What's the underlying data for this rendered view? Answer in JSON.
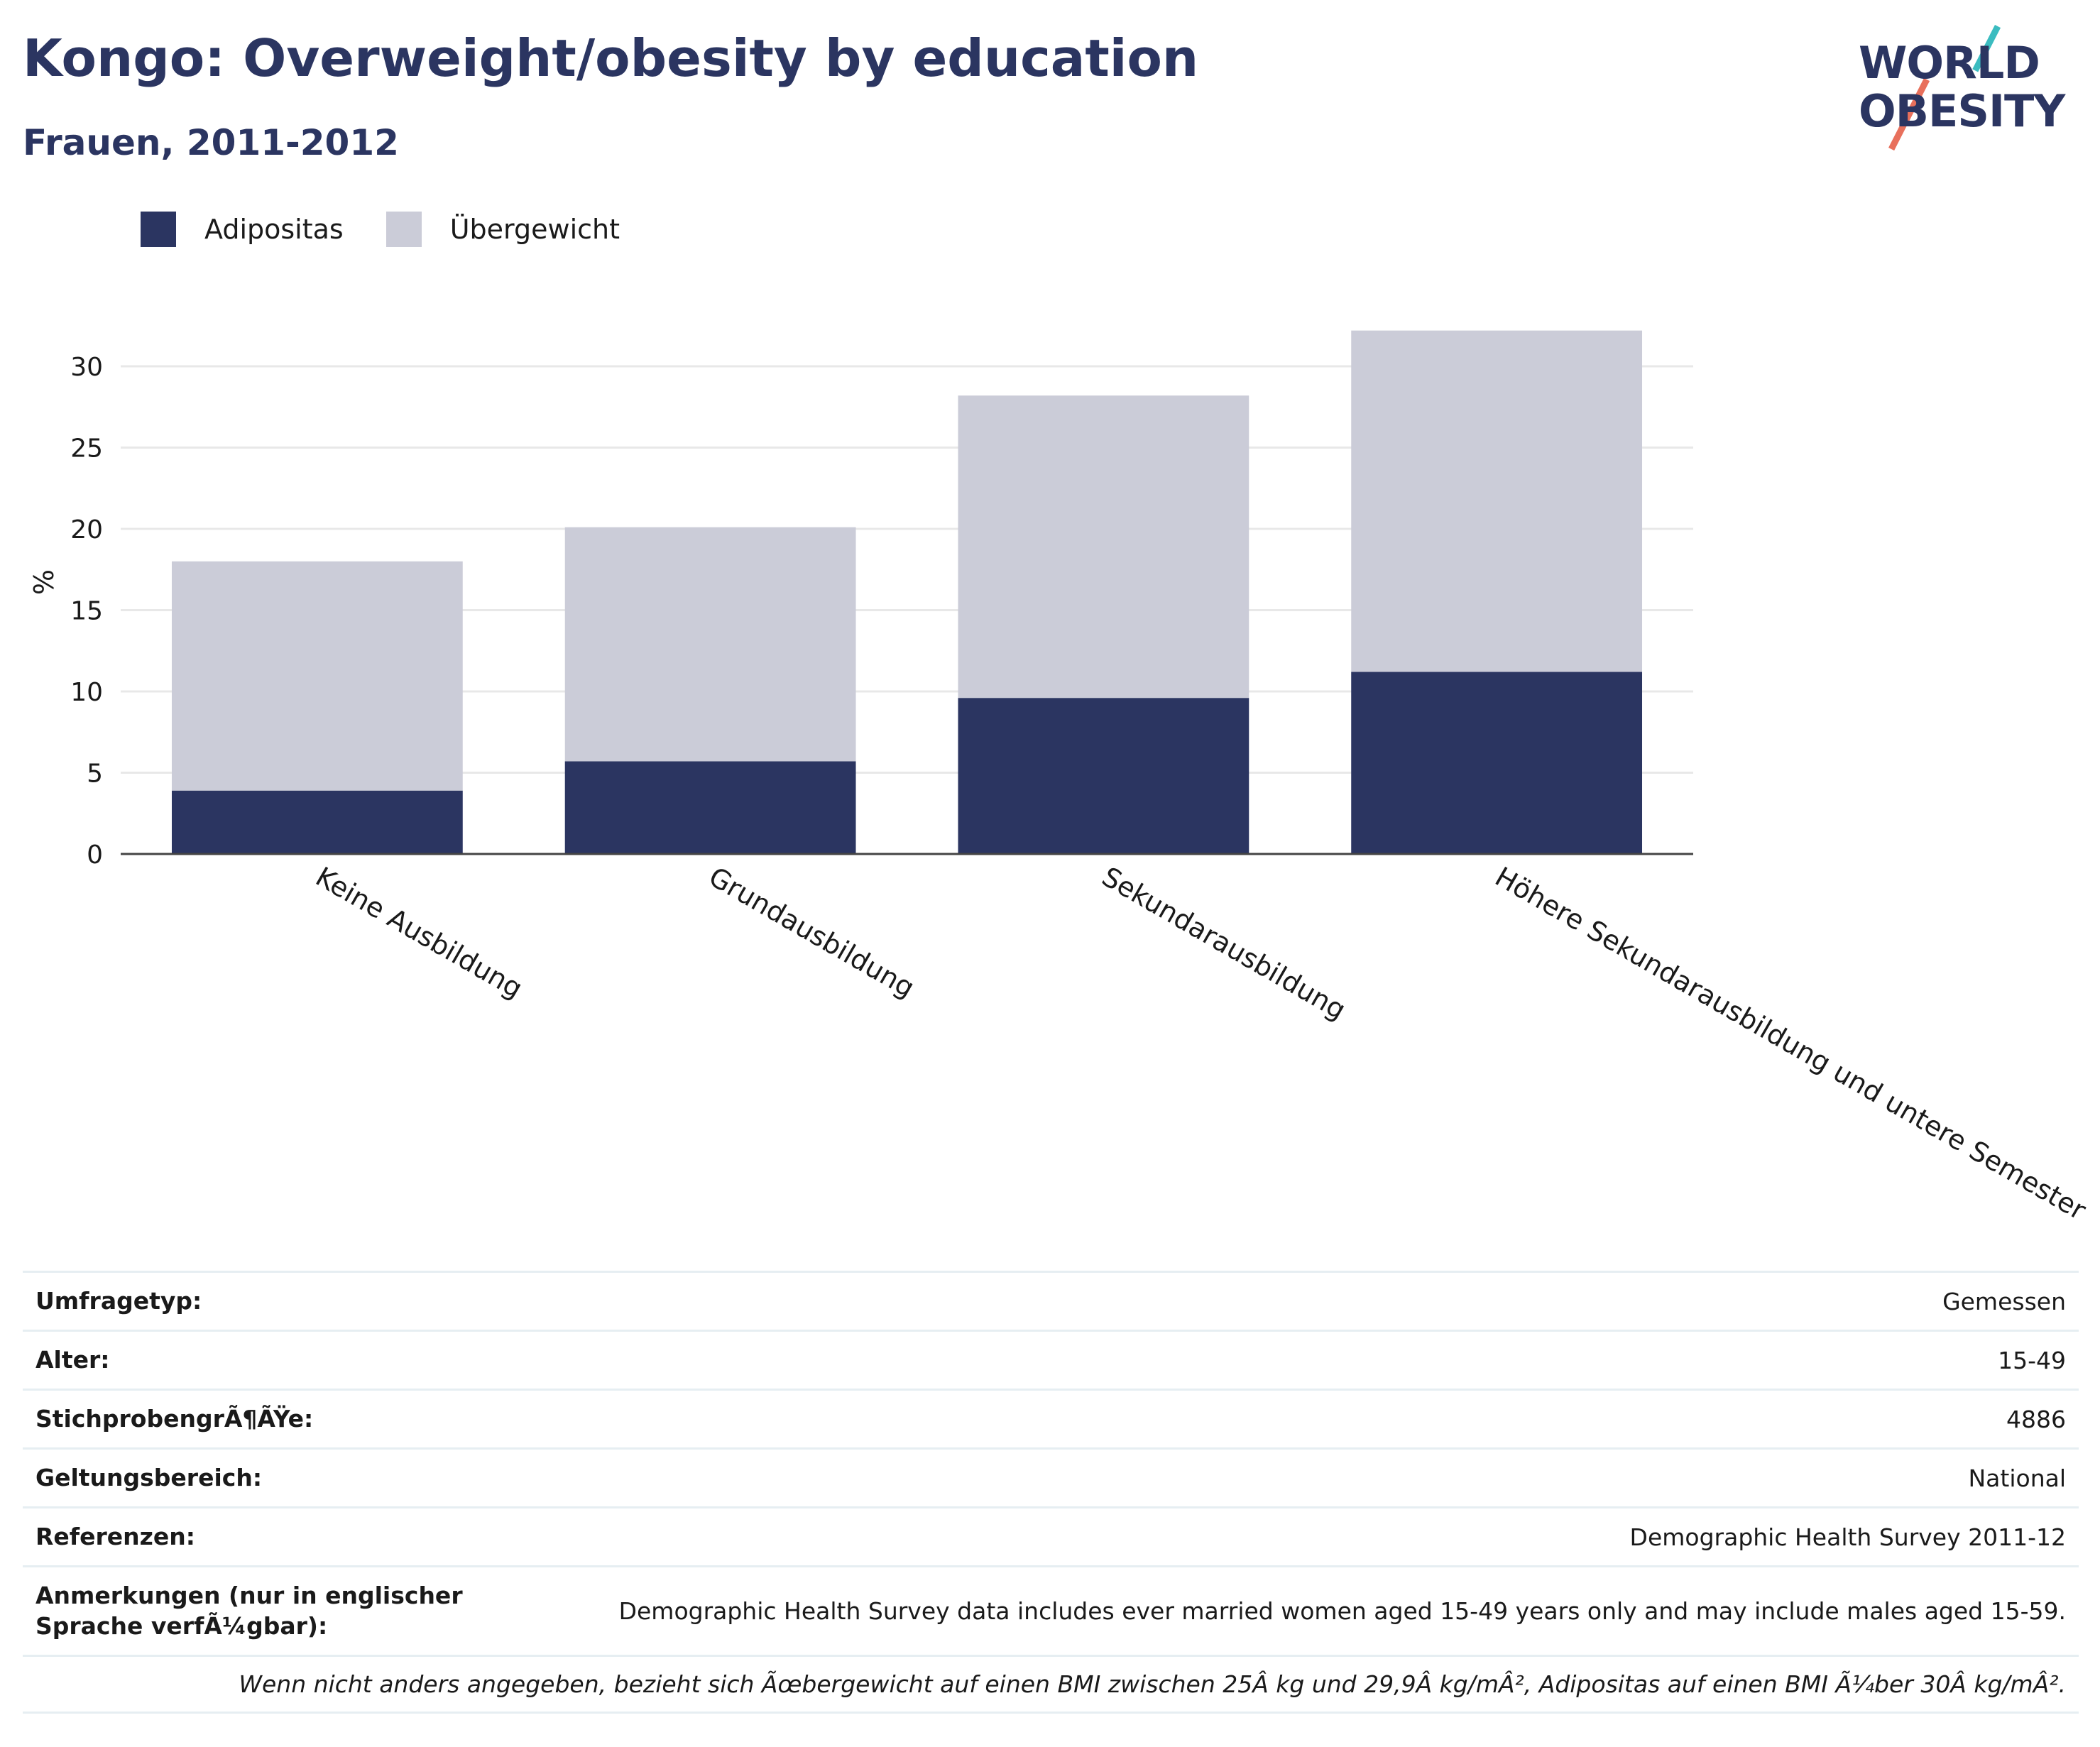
{
  "header": {
    "title": "Kongo: Overweight/obesity by education",
    "subtitle": "Frauen, 2011-2012"
  },
  "logo": {
    "line1": "WORLD",
    "line2": "OBESITY",
    "text_color": "#2b3561",
    "slash_colors": [
      "#e8705c",
      "#3bbcc0"
    ]
  },
  "legend": [
    {
      "label": "Adipositas",
      "color": "#2b3561"
    },
    {
      "label": "Übergewicht",
      "color": "#cbccd8"
    }
  ],
  "chart_data": {
    "type": "bar",
    "stacked": true,
    "categories": [
      "Keine Ausbildung",
      "Grundausbildung",
      "Sekundarausbildung",
      "Höhere Sekundarausbildung und untere Semester"
    ],
    "series": [
      {
        "name": "Adipositas",
        "values": [
          3.9,
          5.7,
          9.6,
          11.2
        ],
        "color": "#2b3561"
      },
      {
        "name": "Übergewicht",
        "values": [
          14.1,
          14.4,
          18.6,
          21.0
        ],
        "color": "#cbccd8"
      }
    ],
    "ylabel": "%",
    "xlabel": "",
    "ylim": [
      0,
      33.5
    ],
    "yticks": [
      0,
      5,
      10,
      15,
      20,
      25,
      30
    ],
    "grid": true,
    "legend_position": "top-left"
  },
  "info": {
    "rows": [
      {
        "key": "Umfragetyp:",
        "value": "Gemessen"
      },
      {
        "key": "Alter:",
        "value": "15-49"
      },
      {
        "key": "StichprobengrÃ¶ÃŸe:",
        "value": "4886"
      },
      {
        "key": "Geltungsbereich:",
        "value": "National"
      },
      {
        "key": "Referenzen:",
        "value": "Demographic Health Survey 2011-12"
      },
      {
        "key": "Anmerkungen (nur in englischer Sprache verfÃ¼gbar):",
        "value": "Demographic Health Survey data includes ever married women aged 15-49 years only and may include males aged 15-59."
      }
    ],
    "footnote": "Wenn nicht anders angegeben, bezieht sich Ãœbergewicht auf einen BMI zwischen 25Â kg und 29,9Â kg/mÂ², Adipositas auf einen BMI Ã¼ber 30Â kg/mÂ²."
  }
}
